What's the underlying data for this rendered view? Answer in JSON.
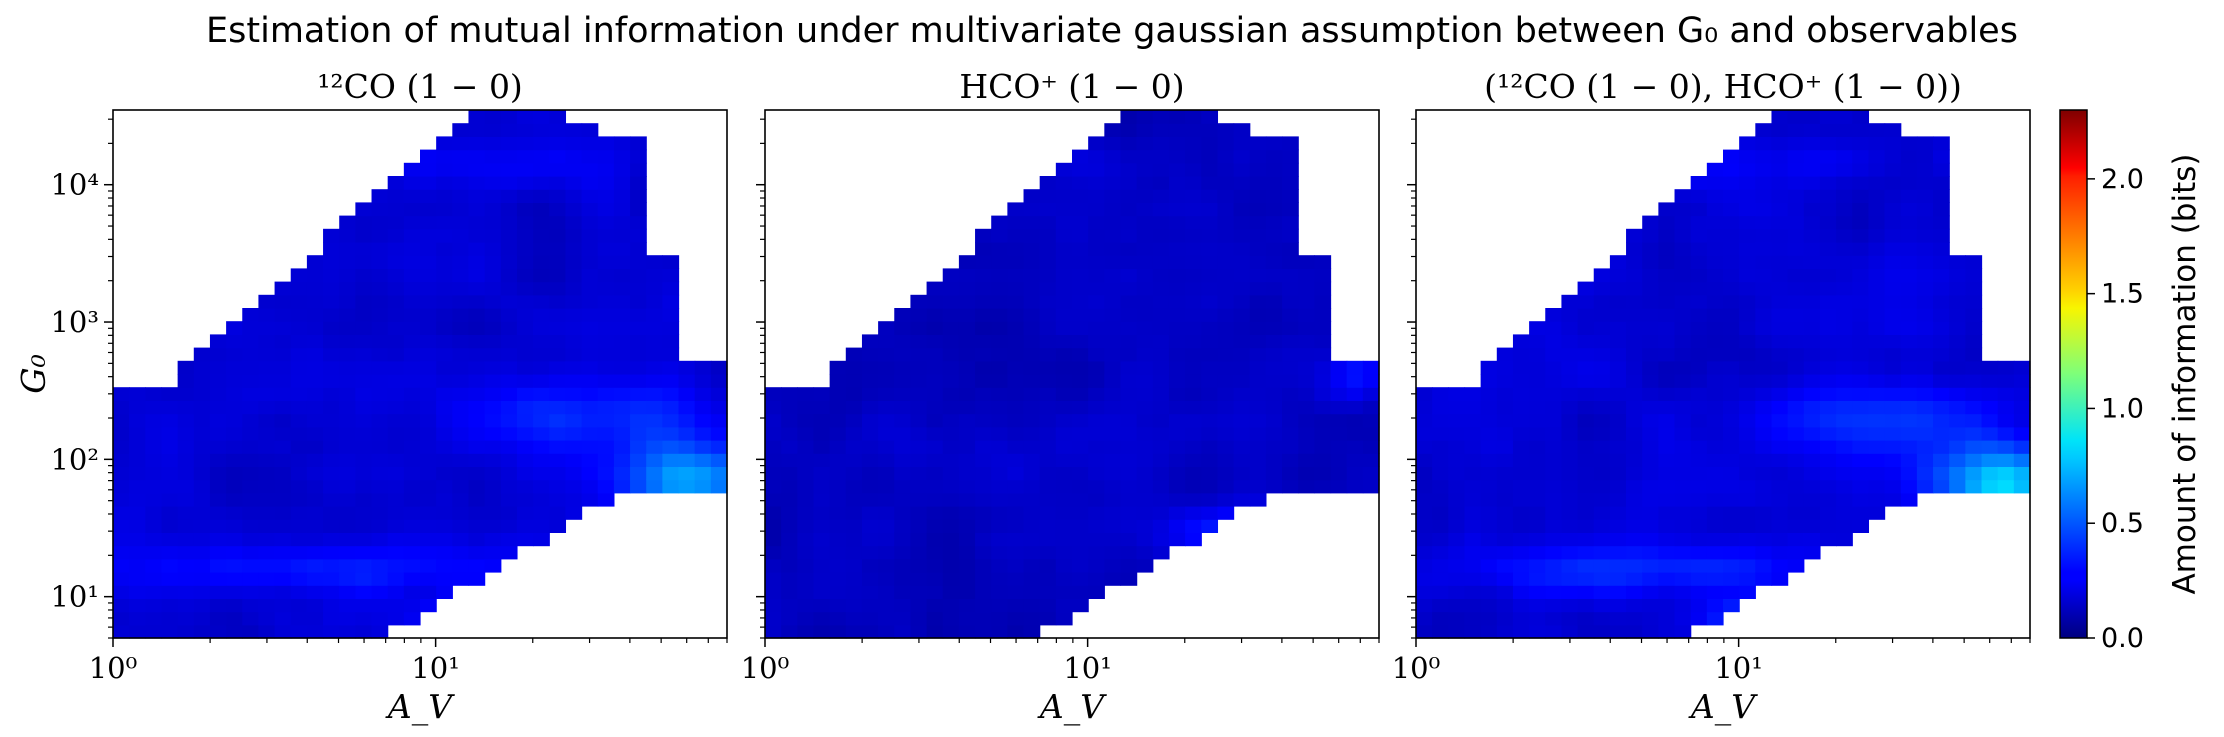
{
  "figure": {
    "title": "Estimation of mutual information under multivariate gaussian assumption between G₀ and observables"
  },
  "chart_data": [
    {
      "type": "heatmap",
      "title": "¹²CO (1 − 0)",
      "xlabel": "A_V",
      "ylabel": "G₀",
      "x_scale": "log",
      "y_scale": "log",
      "xlim": [
        1,
        80
      ],
      "ylim": [
        5,
        35000
      ],
      "x_ticks": [
        "10⁰",
        "10¹"
      ],
      "y_ticks": [
        "10¹",
        "10²",
        "10³",
        "10⁴"
      ],
      "colormap": "jet",
      "value_range": [
        0.0,
        2.3
      ],
      "summary": "Mostly 0.1–0.3 bits; higher (0.5–0.8) bands near G₀≈50–300 at A_V≈20–80 and G₀≈6–10 at A_V≈10–35",
      "grid": false
    },
    {
      "type": "heatmap",
      "title": "HCO⁺ (1 − 0)",
      "xlabel": "A_V",
      "ylabel": "",
      "x_scale": "log",
      "y_scale": "log",
      "xlim": [
        1,
        80
      ],
      "ylim": [
        5,
        35000
      ],
      "x_ticks": [
        "10⁰",
        "10¹"
      ],
      "colormap": "jet",
      "value_range": [
        0.0,
        2.3
      ],
      "summary": "Mostly 0.05–0.2 bits; moderate (0.4–0.6) band near G₀≈20–60 at A_V≈20–80",
      "grid": false
    },
    {
      "type": "heatmap",
      "title": "(¹²CO (1 − 0), HCO⁺ (1 − 0))",
      "xlabel": "A_V",
      "ylabel": "",
      "x_scale": "log",
      "y_scale": "log",
      "xlim": [
        1,
        80
      ],
      "ylim": [
        5,
        35000
      ],
      "x_ticks": [
        "10⁰",
        "10¹"
      ],
      "colormap": "jet",
      "value_range": [
        0.0,
        2.3
      ],
      "summary": "Similar to ¹²CO panel with slightly higher values; peak ~0.8 bits near G₀≈60 at A_V≈60–80",
      "grid": false
    }
  ],
  "colorbar": {
    "label": "Amount of information (bits)",
    "ticks": [
      "0.0",
      "0.5",
      "1.0",
      "1.5",
      "2.0"
    ],
    "tick_values": [
      0.0,
      0.5,
      1.0,
      1.5,
      2.0
    ],
    "min": 0.0,
    "max": 2.3
  }
}
